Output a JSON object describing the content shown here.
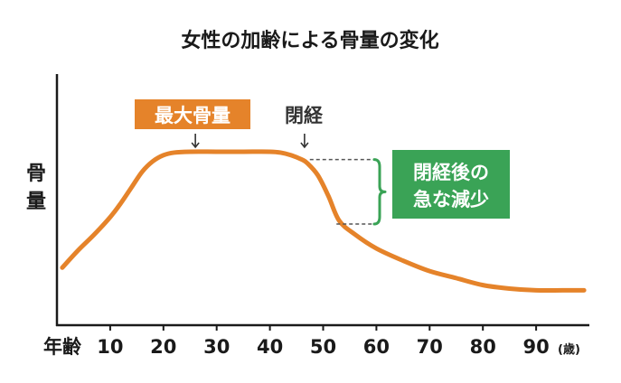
{
  "colors": {
    "curve": "#e5832a",
    "accent_orange": "#e5832a",
    "accent_green": "#3aa356",
    "axis": "#1a1a1a",
    "bracket": "#3aa356",
    "dash": "#555555"
  },
  "chart_data": {
    "type": "line",
    "title": "女性の加齢による骨量の変化",
    "ylabel": [
      "骨",
      "量"
    ],
    "xlabel": "年齢",
    "unit": "(歳)",
    "x_ticks": [
      10,
      20,
      30,
      40,
      50,
      60,
      70,
      80,
      90
    ],
    "xlim": [
      0,
      99
    ],
    "ylim": [
      0,
      110
    ],
    "series": [
      {
        "name": "骨量",
        "x": [
          1,
          4,
          7,
          10,
          12,
          14,
          16,
          18,
          20,
          22,
          25,
          30,
          35,
          40,
          42,
          44,
          46,
          47,
          49,
          51,
          53,
          56,
          60,
          65,
          70,
          75,
          80,
          85,
          90,
          95,
          99
        ],
        "y": [
          33,
          43,
          52,
          62,
          70,
          79,
          88,
          94,
          97.5,
          99,
          99.5,
          99.5,
          99.5,
          99.5,
          99,
          97.5,
          95,
          93,
          86,
          74,
          60,
          52,
          44,
          37,
          31,
          27,
          23,
          21,
          20,
          20,
          20
        ]
      }
    ],
    "annotations": [
      {
        "text": "最大骨量",
        "x": 26,
        "style": "orange-box"
      },
      {
        "text": "閉経",
        "x": 46.5,
        "style": "plain"
      },
      {
        "lines": [
          "閉経後の",
          "急な減少"
        ],
        "from_y": 95,
        "to_y": 58,
        "style": "green-box"
      }
    ]
  }
}
